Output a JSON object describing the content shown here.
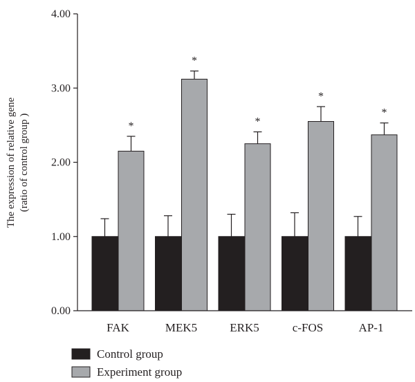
{
  "chart_data": {
    "type": "bar",
    "categories": [
      "FAK",
      "MEK5",
      "ERK5",
      "c-FOS",
      "AP-1"
    ],
    "series": [
      {
        "name": "Control group",
        "values": [
          1.0,
          1.0,
          1.0,
          1.0,
          1.0
        ],
        "errors": [
          0.24,
          0.28,
          0.3,
          0.32,
          0.27
        ],
        "color": "#231f20"
      },
      {
        "name": "Experiment group",
        "values": [
          2.15,
          3.12,
          2.25,
          2.55,
          2.37
        ],
        "errors": [
          0.2,
          0.11,
          0.16,
          0.2,
          0.16
        ],
        "color": "#a7a9ac"
      }
    ],
    "significance": [
      "*",
      "*",
      "*",
      "*",
      "*"
    ],
    "title": "",
    "xlabel": "",
    "ylabel_lines": [
      "The expression of relative gene",
      "(ratio of control group )"
    ],
    "ylim": [
      0,
      4
    ],
    "yticks": [
      0,
      1,
      2,
      3,
      4
    ],
    "ytick_labels": [
      "0.00",
      "1.00",
      "2.00",
      "3.00",
      "4.00"
    ],
    "grid": false,
    "legend_position": "bottom-left"
  }
}
